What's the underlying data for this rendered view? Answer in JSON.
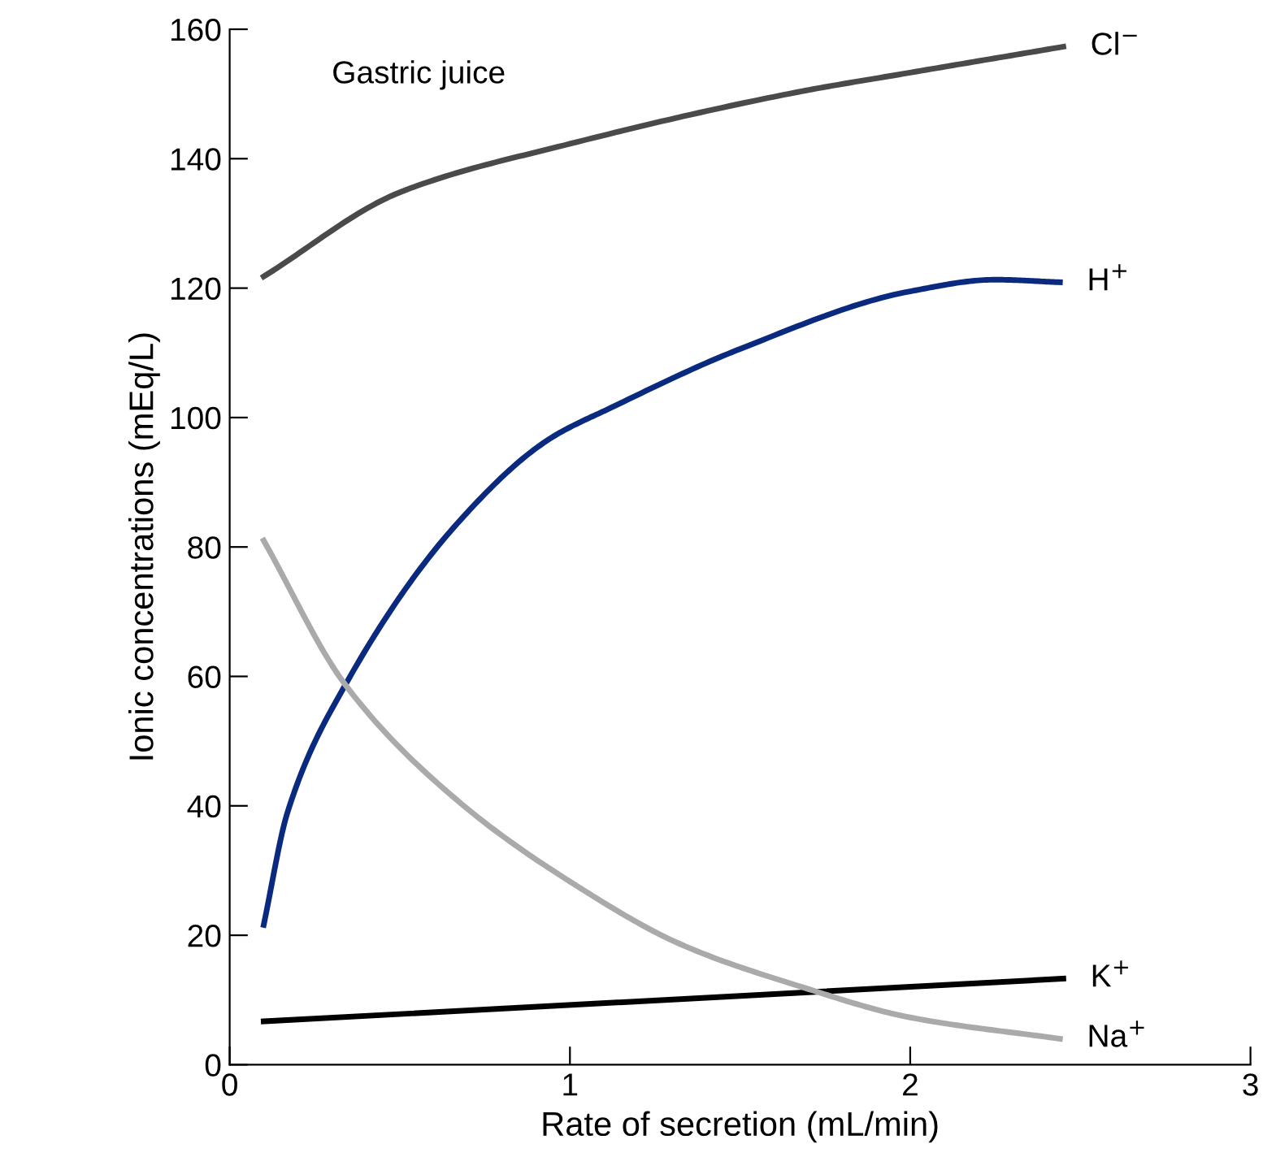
{
  "chart_data": {
    "type": "line",
    "xlabel": "Rate of secretion (mL/min)",
    "ylabel": "Ionic concentrations (mEq/L)",
    "annotations": [
      "Gastric juice"
    ],
    "xlim": [
      0,
      3
    ],
    "ylim": [
      0,
      160
    ],
    "xticks": [
      0,
      1,
      2,
      3
    ],
    "yticks": [
      0,
      20,
      40,
      60,
      80,
      100,
      120,
      140,
      160
    ],
    "grid": false,
    "legend": false,
    "marker": "none",
    "line_style": "solid",
    "series": [
      {
        "name": "Cl$^{−}$",
        "color": "#4a4a4a",
        "x": [
          0.1,
          0.5,
          1.0,
          1.67,
          2.0,
          2.45
        ],
        "values": [
          121.8,
          134.8,
          142.3,
          150.3,
          153.3,
          157.3
        ]
      },
      {
        "name": "H$^{+}$",
        "color": "#0a2a80",
        "x": [
          0.1,
          0.17,
          0.34,
          0.67,
          0.94,
          1.12,
          1.5,
          2.0,
          2.25,
          2.44
        ],
        "values": [
          21.6,
          39,
          58.7,
          83.7,
          96.7,
          101.5,
          110.6,
          119.5,
          121.3,
          120.9
        ]
      },
      {
        "name": "K$^{+}$",
        "color": "#000000",
        "x": [
          0.1,
          2.45
        ],
        "values": [
          6.7,
          13.3
        ]
      },
      {
        "name": "Na$^{+}$",
        "color": "#aaaaaa",
        "x": [
          0.1,
          0.34,
          0.67,
          1.0,
          1.33,
          1.67,
          2.0,
          2.44
        ],
        "values": [
          81,
          58.7,
          40.8,
          28.3,
          18.5,
          12.2,
          7.3,
          4
        ]
      }
    ]
  }
}
